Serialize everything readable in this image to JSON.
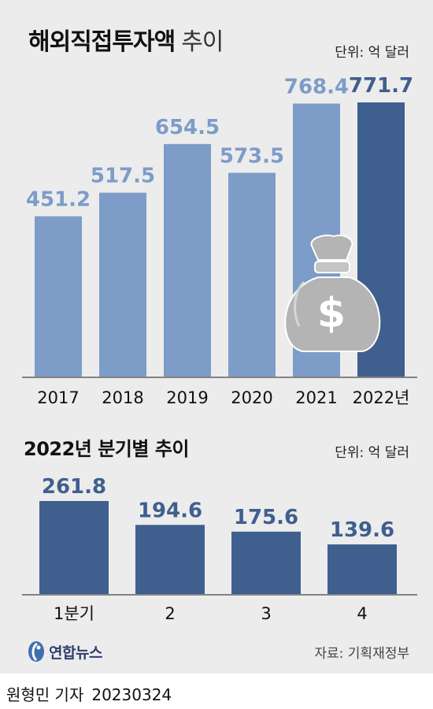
{
  "title": {
    "main": "해외직접투자액",
    "sub": "추이"
  },
  "unit_label": "단위: 억 달러",
  "colors": {
    "light_bar": "#7d9cc8",
    "highlight_bar": "#3f5f8e",
    "light_label": "#7d9cc8",
    "dark_label": "#3f5f8e",
    "quarter_bar": "#3f5f8e",
    "quarter_label": "#3f5f8e"
  },
  "icon": "money-bag-dollar-icon",
  "chart_data": [
    {
      "type": "bar",
      "title": "해외직접투자액 추이",
      "unit": "단위: 억 달러",
      "categories": [
        "2017",
        "2018",
        "2019",
        "2020",
        "2021",
        "2022년"
      ],
      "values": [
        451.2,
        517.5,
        654.5,
        573.5,
        768.4,
        771.7
      ],
      "value_labels": [
        "451.2",
        "517.5",
        "654.5",
        "573.5",
        "768.4",
        "771.7"
      ],
      "highlight_index": 5,
      "ylim": [
        0,
        771.7
      ],
      "grid": false
    },
    {
      "type": "bar",
      "title": "2022년 분기별 추이",
      "unit": "단위: 억 달러",
      "categories": [
        "1분기",
        "2",
        "3",
        "4"
      ],
      "values": [
        261.8,
        194.6,
        175.6,
        139.6
      ],
      "value_labels": [
        "261.8",
        "194.6",
        "175.6",
        "139.6"
      ],
      "ylim": [
        0,
        261.8
      ],
      "grid": false
    }
  ],
  "section2_title": "2022년 분기별 추이",
  "logo_text": "연합뉴스",
  "source": "자료: 기획재정부",
  "byline": {
    "reporter": "원형민 기자",
    "date": "20230324"
  }
}
